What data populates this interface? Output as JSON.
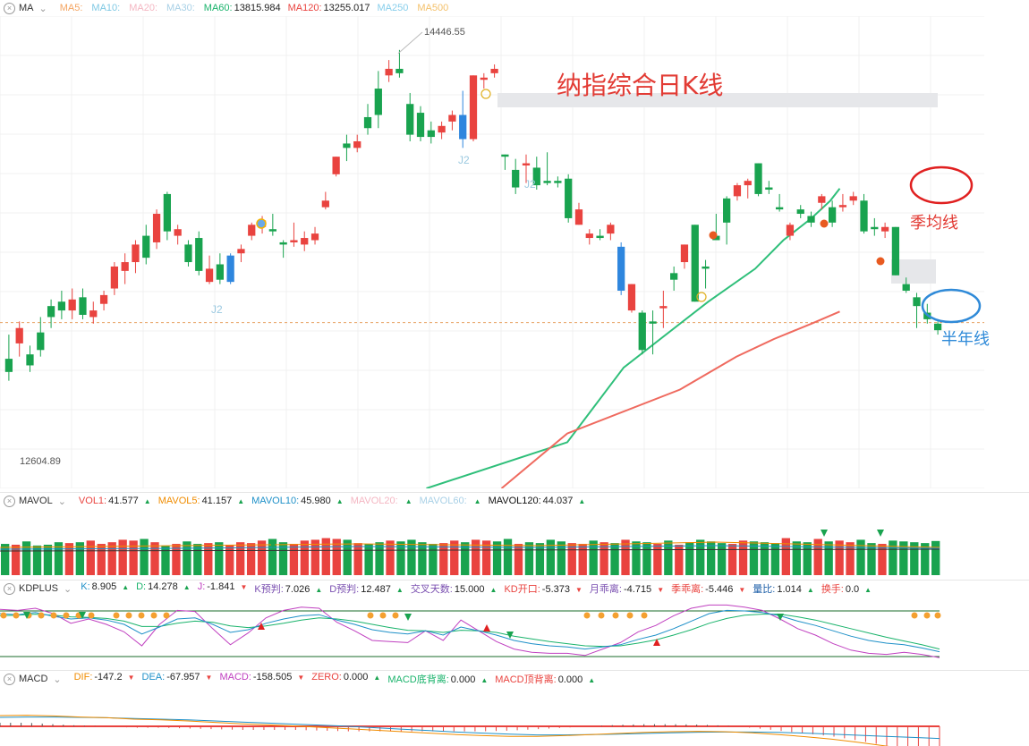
{
  "main_bar": {
    "name": "MA",
    "items": [
      {
        "label": "MA5:",
        "value": "",
        "color": "#f4a460"
      },
      {
        "label": "MA10:",
        "value": "",
        "color": "#7ec8e3"
      },
      {
        "label": "MA20:",
        "value": "",
        "color": "#f4b6c2"
      },
      {
        "label": "MA30:",
        "value": "",
        "color": "#a8d0e6"
      },
      {
        "label": "MA60:",
        "value": "13815.984",
        "color": "#19b36b"
      },
      {
        "label": "MA120:",
        "value": "13255.017",
        "color": "#e9433f"
      },
      {
        "label": "MA250",
        "value": "",
        "color": "#87ceeb"
      },
      {
        "label": "MA500",
        "value": "",
        "color": "#f4c16b"
      }
    ]
  },
  "vol_bar": {
    "name": "MAVOL",
    "items": [
      {
        "label": "VOL1:",
        "value": "41.577",
        "color": "#e9433f"
      },
      {
        "label": "MAVOL5:",
        "value": "41.157",
        "color": "#f08c00"
      },
      {
        "label": "MAVOL10:",
        "value": "45.980",
        "color": "#1e90c8"
      },
      {
        "label": "MAVOL20:",
        "value": "",
        "color": "#f4b6c2"
      },
      {
        "label": "MAVOL60:",
        "value": "",
        "color": "#a8d0e6"
      },
      {
        "label": "MAVOL120:",
        "value": "44.037",
        "color": "#111111"
      }
    ]
  },
  "kd_bar": {
    "name": "KDPLUS",
    "items": [
      {
        "label": "K:",
        "value": "8.905",
        "color": "#1e90c8"
      },
      {
        "label": "D:",
        "value": "14.278",
        "color": "#19b36b"
      },
      {
        "label": "J:",
        "value": "-1.841",
        "color": "#c040c0"
      },
      {
        "label": "K预判:",
        "value": "7.026",
        "color": "#7a4fb0"
      },
      {
        "label": "D预判:",
        "value": "12.487",
        "color": "#7a4fb0"
      },
      {
        "label": "交叉天数:",
        "value": "15.000",
        "color": "#7a4fb0"
      },
      {
        "label": "KD开口:",
        "value": "-5.373",
        "color": "#e9433f"
      },
      {
        "label": "月乖离:",
        "value": "-4.715",
        "color": "#7a4fb0"
      },
      {
        "label": "季乖离:",
        "value": "-5.446",
        "color": "#e9433f"
      },
      {
        "label": "量比:",
        "value": "1.014",
        "color": "#1e5fa8"
      },
      {
        "label": "换手:",
        "value": "0.0",
        "color": "#e9433f"
      }
    ]
  },
  "macd_bar": {
    "name": "MACD",
    "items": [
      {
        "label": "DIF:",
        "value": "-147.2",
        "color": "#f08c00"
      },
      {
        "label": "DEA:",
        "value": "-67.957",
        "color": "#1e90c8"
      },
      {
        "label": "MACD:",
        "value": "-158.505",
        "color": "#c040c0"
      },
      {
        "label": "ZERO:",
        "value": "0.000",
        "color": "#e9433f"
      },
      {
        "label": "MACD底背离:",
        "value": "0.000",
        "color": "#19b36b"
      },
      {
        "label": "MACD顶背离:",
        "value": "0.000",
        "color": "#e9433f"
      }
    ]
  },
  "annotations": {
    "title": "纳指综合日K线",
    "season_line": "季均线",
    "half_year_line": "半年线",
    "high_label": "14446.55",
    "low_label": "12604.89",
    "j2": "J2"
  },
  "colors": {
    "up": "#e9433f",
    "down": "#19a34f",
    "special": "#2e86de",
    "ma60": "#2fbf7a",
    "ma120": "#ef6a5f"
  },
  "chart_data": {
    "type": "candlestick",
    "y_range": [
      12450,
      14600
    ],
    "candles": [
      [
        13040,
        13150,
        12940,
        12980
      ],
      [
        13110,
        13210,
        13050,
        13180
      ],
      [
        13060,
        13100,
        12980,
        13010
      ],
      [
        13160,
        13230,
        13050,
        13080
      ],
      [
        13280,
        13310,
        13180,
        13230
      ],
      [
        13300,
        13350,
        13220,
        13260
      ],
      [
        13260,
        13360,
        13220,
        13310
      ],
      [
        13320,
        13360,
        13220,
        13240
      ],
      [
        13230,
        13300,
        13200,
        13260
      ],
      [
        13290,
        13350,
        13260,
        13330
      ],
      [
        13360,
        13480,
        13330,
        13460
      ],
      [
        13440,
        13520,
        13380,
        13480
      ],
      [
        13480,
        13580,
        13430,
        13560
      ],
      [
        13600,
        13650,
        13470,
        13500
      ],
      [
        13570,
        13720,
        13540,
        13700
      ],
      [
        13790,
        13800,
        13580,
        13620
      ],
      [
        13600,
        13650,
        13560,
        13630
      ],
      [
        13560,
        13580,
        13460,
        13480
      ],
      [
        13590,
        13620,
        13420,
        13440
      ],
      [
        13390,
        13510,
        13380,
        13450
      ],
      [
        13470,
        13520,
        13380,
        13400
      ],
      [
        13390,
        13520,
        13380,
        13510
      ],
      [
        13520,
        13560,
        13480,
        13540
      ],
      [
        13600,
        13660,
        13580,
        13650
      ],
      [
        13640,
        13690,
        13610,
        13670
      ],
      [
        13630,
        13700,
        13600,
        13620
      ],
      [
        13570,
        13580,
        13500,
        13560
      ],
      [
        13570,
        13660,
        13550,
        13580
      ],
      [
        13560,
        13620,
        13530,
        13590
      ],
      [
        13580,
        13640,
        13560,
        13610
      ],
      [
        13730,
        13800,
        13720,
        13760
      ],
      [
        13880,
        13960,
        13870,
        13960
      ],
      [
        14020,
        14060,
        13940,
        14000
      ],
      [
        14000,
        14060,
        13980,
        14030
      ],
      [
        14140,
        14200,
        14060,
        14090
      ],
      [
        14270,
        14350,
        14090,
        14150
      ],
      [
        14330,
        14400,
        14300,
        14360
      ],
      [
        14360,
        14446,
        14320,
        14340
      ],
      [
        14200,
        14250,
        14030,
        14060
      ],
      [
        14160,
        14190,
        14030,
        14050
      ],
      [
        14080,
        14120,
        14020,
        14050
      ],
      [
        14070,
        14120,
        14040,
        14100
      ],
      [
        14120,
        14170,
        14080,
        14150
      ],
      [
        14150,
        14260,
        14000,
        14040
      ],
      [
        14040,
        14330,
        14030,
        14330
      ],
      [
        14310,
        14340,
        14270,
        14320
      ],
      [
        14340,
        14380,
        14320,
        14360
      ],
      [
        13970,
        13970,
        13900,
        13960
      ],
      [
        13900,
        13950,
        13790,
        13820
      ],
      [
        13920,
        13970,
        13840,
        13930
      ],
      [
        13910,
        13960,
        13810,
        13830
      ],
      [
        13850,
        13980,
        13830,
        13840
      ],
      [
        13850,
        13870,
        13820,
        13840
      ],
      [
        13860,
        13880,
        13660,
        13680
      ],
      [
        13650,
        13750,
        13650,
        13720
      ],
      [
        13590,
        13630,
        13560,
        13610
      ],
      [
        13600,
        13630,
        13580,
        13590
      ],
      [
        13610,
        13660,
        13580,
        13650
      ],
      [
        13550,
        13570,
        13330,
        13350
      ],
      [
        13260,
        13380,
        13250,
        13380
      ],
      [
        13250,
        13260,
        13060,
        13080
      ],
      [
        13210,
        13260,
        13060,
        13200
      ],
      [
        13270,
        13350,
        13180,
        13280
      ],
      [
        13430,
        13460,
        13350,
        13400
      ],
      [
        13480,
        13560,
        13450,
        13560
      ],
      [
        13650,
        13650,
        13300,
        13300
      ],
      [
        13460,
        13490,
        13360,
        13450
      ],
      [
        13600,
        13700,
        13580,
        13580
      ],
      [
        13770,
        13780,
        13560,
        13660
      ],
      [
        13780,
        13840,
        13760,
        13830
      ],
      [
        13830,
        13860,
        13770,
        13850
      ],
      [
        13930,
        13930,
        13780,
        13790
      ],
      [
        13820,
        13850,
        13790,
        13810
      ],
      [
        13730,
        13790,
        13710,
        13720
      ],
      [
        13600,
        13660,
        13580,
        13650
      ],
      [
        13720,
        13740,
        13680,
        13700
      ],
      [
        13690,
        13710,
        13640,
        13660
      ],
      [
        13750,
        13790,
        13720,
        13780
      ],
      [
        13730,
        13760,
        13640,
        13660
      ],
      [
        13730,
        13790,
        13710,
        13740
      ],
      [
        13760,
        13800,
        13740,
        13780
      ],
      [
        13760,
        13790,
        13610,
        13620
      ],
      [
        13640,
        13680,
        13600,
        13630
      ],
      [
        13620,
        13660,
        13590,
        13640
      ],
      [
        13640,
        13640,
        13420,
        13420
      ],
      [
        13380,
        13410,
        13340,
        13350
      ],
      [
        13320,
        13340,
        13180,
        13280
      ],
      [
        13250,
        13290,
        13200,
        13220
      ],
      [
        13200,
        13210,
        13150,
        13170
      ]
    ],
    "special_blue_indices": [
      21,
      43,
      58
    ],
    "ma60": [
      [
        12450,
        45
      ],
      [
        12660,
        60
      ],
      [
        13000,
        66
      ],
      [
        13300,
        75
      ],
      [
        13450,
        80
      ],
      [
        13580,
        83
      ],
      [
        13680,
        86
      ],
      [
        13760,
        88
      ],
      [
        13815,
        89
      ]
    ],
    "ma120": [
      [
        12450,
        53
      ],
      [
        12700,
        60
      ],
      [
        12900,
        72
      ],
      [
        13050,
        78
      ],
      [
        13130,
        82
      ],
      [
        13200,
        86
      ],
      [
        13255,
        89
      ]
    ],
    "volume": [
      38,
      37,
      41,
      36,
      37,
      40,
      39,
      40,
      42,
      38,
      40,
      43,
      42,
      44,
      40,
      36,
      38,
      41,
      38,
      39,
      40,
      37,
      40,
      39,
      42,
      44,
      40,
      38,
      42,
      43,
      45,
      44,
      43,
      39,
      38,
      40,
      42,
      41,
      43,
      40,
      38,
      39,
      42,
      40,
      43,
      42,
      41,
      44,
      38,
      40,
      39,
      43,
      41,
      39,
      38,
      42,
      40,
      39,
      43,
      41,
      40,
      38,
      42,
      37,
      40,
      43,
      41,
      39,
      38,
      42,
      41,
      40,
      39,
      45,
      41,
      40,
      44,
      41,
      42,
      40,
      43,
      39,
      38,
      42,
      41,
      40,
      39,
      41.5
    ],
    "kd": {
      "K": [
        80,
        78,
        82,
        75,
        70,
        72,
        68,
        60,
        42,
        55,
        70,
        72,
        60,
        45,
        50,
        62,
        70,
        76,
        78,
        68,
        60,
        50,
        45,
        42,
        48,
        40,
        55,
        48,
        40,
        30,
        24,
        20,
        18,
        14,
        18,
        22,
        32,
        40,
        52,
        66,
        80,
        86,
        85,
        82,
        76,
        66,
        58,
        48,
        38,
        30,
        25,
        22,
        16,
        9
      ],
      "D": [
        76,
        77,
        79,
        77,
        74,
        73,
        71,
        66,
        56,
        56,
        62,
        66,
        64,
        57,
        54,
        57,
        62,
        68,
        72,
        70,
        66,
        60,
        54,
        49,
        48,
        45,
        49,
        48,
        45,
        38,
        33,
        28,
        24,
        20,
        19,
        20,
        25,
        31,
        40,
        50,
        62,
        71,
        77,
        79,
        79,
        74,
        68,
        60,
        52,
        44,
        36,
        29,
        22,
        14
      ],
      "J": [
        88,
        86,
        90,
        80,
        62,
        70,
        60,
        46,
        20,
        60,
        86,
        84,
        52,
        22,
        44,
        72,
        86,
        92,
        90,
        64,
        48,
        30,
        28,
        26,
        48,
        30,
        68,
        48,
        28,
        14,
        8,
        6,
        6,
        2,
        14,
        26,
        46,
        58,
        76,
        90,
        96,
        96,
        92,
        86,
        70,
        52,
        40,
        24,
        12,
        6,
        4,
        8,
        4,
        -2
      ]
    },
    "macd": {
      "DIF": [
        60,
        62,
        58,
        52,
        48,
        40,
        36,
        30,
        22,
        14,
        8,
        2,
        -6,
        -14,
        -22,
        -30,
        -38,
        -46,
        -52,
        -56,
        -56,
        -52,
        -46,
        -40,
        -34,
        -30,
        -28,
        -30,
        -36,
        -46,
        -58,
        -72,
        -90,
        -110,
        -130,
        -147
      ],
      "DEA": [
        50,
        52,
        52,
        50,
        48,
        44,
        40,
        36,
        30,
        24,
        18,
        12,
        6,
        0,
        -8,
        -16,
        -24,
        -32,
        -38,
        -44,
        -48,
        -48,
        -46,
        -44,
        -40,
        -36,
        -33,
        -32,
        -32,
        -34,
        -38,
        -44,
        -50,
        -56,
        -62,
        -68
      ]
    }
  }
}
